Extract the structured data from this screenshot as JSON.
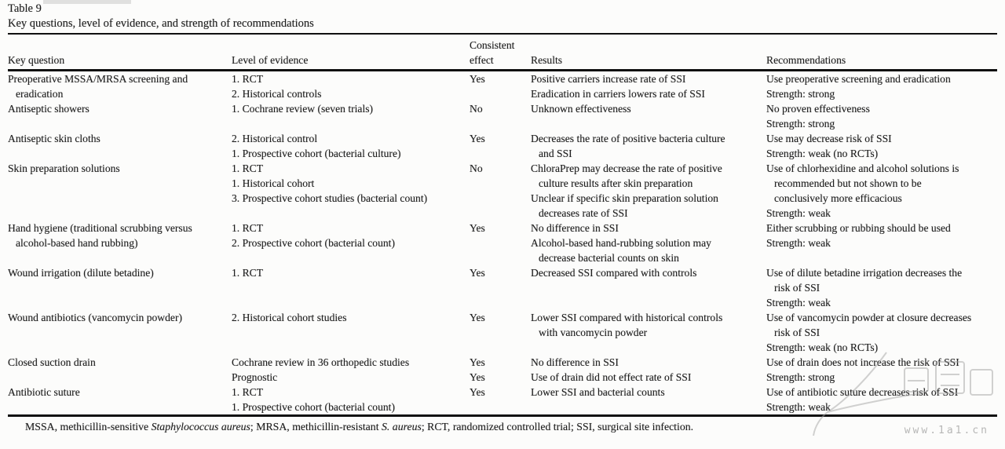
{
  "title": {
    "number": "Table 9",
    "caption": "Key questions, level of evidence, and strength of recommendations"
  },
  "table": {
    "headers": {
      "question": "Key question",
      "evidence": "Level of evidence",
      "effect_line1": "Consistent",
      "effect_line2": "effect",
      "results": "Results",
      "recommendations": "Recommendations"
    },
    "rows": [
      {
        "question": [
          {
            "t": "Preoperative MSSA/MRSA screening and"
          },
          {
            "t": "eradication",
            "i": 1
          }
        ],
        "evidence": [
          {
            "t": "1. RCT"
          },
          {
            "t": "2. Historical controls"
          }
        ],
        "effect": [
          {
            "t": "Yes"
          }
        ],
        "results": [
          {
            "t": "Positive carriers increase rate of SSI"
          },
          {
            "t": "Eradication in carriers lowers rate of SSI"
          }
        ],
        "recommendations": [
          {
            "t": "Use preoperative screening and eradication"
          },
          {
            "t": "Strength: strong"
          }
        ]
      },
      {
        "question": [
          {
            "t": "Antiseptic showers"
          }
        ],
        "evidence": [
          {
            "t": "1. Cochrane review (seven trials)"
          }
        ],
        "effect": [
          {
            "t": "No"
          }
        ],
        "results": [
          {
            "t": "Unknown effectiveness"
          }
        ],
        "recommendations": [
          {
            "t": "No proven effectiveness"
          },
          {
            "t": "Strength: strong"
          }
        ]
      },
      {
        "question": [
          {
            "t": "Antiseptic skin cloths"
          }
        ],
        "evidence": [
          {
            "t": "2. Historical control"
          },
          {
            "t": "1. Prospective cohort (bacterial culture)"
          }
        ],
        "effect": [
          {
            "t": "Yes"
          }
        ],
        "results": [
          {
            "t": "Decreases the rate of positive bacteria culture"
          },
          {
            "t": "and SSI",
            "i": 1
          }
        ],
        "recommendations": [
          {
            "t": "Use may decrease risk of SSI"
          },
          {
            "t": "Strength: weak (no RCTs)"
          }
        ]
      },
      {
        "question": [
          {
            "t": "Skin preparation solutions"
          }
        ],
        "evidence": [
          {
            "t": "1. RCT"
          },
          {
            "t": "1. Historical cohort"
          },
          {
            "t": "3. Prospective cohort studies (bacterial count)"
          }
        ],
        "effect": [
          {
            "t": "No"
          }
        ],
        "results": [
          {
            "t": "ChloraPrep may decrease the rate of positive"
          },
          {
            "t": "culture results after skin preparation",
            "i": 1
          },
          {
            "t": "Unclear if specific skin preparation solution"
          },
          {
            "t": "decreases rate of SSI",
            "i": 1
          }
        ],
        "recommendations": [
          {
            "t": "Use of chlorhexidine and alcohol solutions is"
          },
          {
            "t": "recommended but not shown to be",
            "i": 1
          },
          {
            "t": "conclusively more efficacious",
            "i": 1
          },
          {
            "t": "Strength: weak"
          }
        ]
      },
      {
        "question": [
          {
            "t": "Hand hygiene (traditional scrubbing versus"
          },
          {
            "t": "alcohol-based hand rubbing)",
            "i": 1
          }
        ],
        "evidence": [
          {
            "t": "1. RCT"
          },
          {
            "t": "2. Prospective cohort (bacterial count)"
          }
        ],
        "effect": [
          {
            "t": "Yes"
          }
        ],
        "results": [
          {
            "t": "No difference in SSI"
          },
          {
            "t": "Alcohol-based hand-rubbing solution may"
          },
          {
            "t": "decrease bacterial counts on skin",
            "i": 1
          }
        ],
        "recommendations": [
          {
            "t": "Either scrubbing or rubbing should be used"
          },
          {
            "t": "Strength: weak"
          }
        ]
      },
      {
        "question": [
          {
            "t": "Wound irrigation (dilute betadine)"
          }
        ],
        "evidence": [
          {
            "t": "1. RCT"
          }
        ],
        "effect": [
          {
            "t": "Yes"
          }
        ],
        "results": [
          {
            "t": "Decreased SSI compared with controls"
          }
        ],
        "recommendations": [
          {
            "t": "Use of dilute betadine irrigation decreases the"
          },
          {
            "t": "risk of SSI",
            "i": 1
          },
          {
            "t": "Strength: weak"
          }
        ]
      },
      {
        "question": [
          {
            "t": "Wound antibiotics (vancomycin powder)"
          }
        ],
        "evidence": [
          {
            "t": "2. Historical cohort studies"
          }
        ],
        "effect": [
          {
            "t": "Yes"
          }
        ],
        "results": [
          {
            "t": "Lower SSI compared with historical controls"
          },
          {
            "t": "with vancomycin powder",
            "i": 1
          }
        ],
        "recommendations": [
          {
            "t": "Use of vancomycin powder at closure decreases"
          },
          {
            "t": "risk of SSI",
            "i": 1
          },
          {
            "t": "Strength: weak (no RCTs)"
          }
        ]
      },
      {
        "question": [
          {
            "t": "Closed suction drain"
          }
        ],
        "evidence": [
          {
            "t": "Cochrane review in 36 orthopedic studies"
          },
          {
            "t": "Prognostic"
          }
        ],
        "effect": [
          {
            "t": "Yes"
          },
          {
            "t": "Yes"
          }
        ],
        "results": [
          {
            "t": "No difference in SSI"
          },
          {
            "t": "Use of drain did not effect rate of SSI"
          }
        ],
        "recommendations": [
          {
            "t": "Use of drain does not increase the risk of SSI"
          },
          {
            "t": "Strength: strong"
          }
        ]
      },
      {
        "question": [
          {
            "t": "Antibiotic suture"
          }
        ],
        "evidence": [
          {
            "t": "1. RCT"
          },
          {
            "t": "1. Prospective cohort (bacterial count)"
          }
        ],
        "effect": [
          {
            "t": "Yes"
          }
        ],
        "results": [
          {
            "t": "Lower SSI and bacterial counts"
          }
        ],
        "recommendations": [
          {
            "t": "Use of antibiotic suture decreases risk of SSI"
          },
          {
            "t": "Strength: weak"
          }
        ]
      }
    ]
  },
  "footnote": {
    "segments": [
      {
        "text": "MSSA, methicillin-sensitive "
      },
      {
        "text": "Staphylococcus aureus",
        "italic": true
      },
      {
        "text": "; MRSA, methicillin-resistant "
      },
      {
        "text": "S. aureus",
        "italic": true
      },
      {
        "text": "; RCT, randomized controlled trial; SSI, surgical site infection."
      }
    ]
  },
  "watermark": {
    "url": "www.1a1.cn"
  },
  "colors": {
    "text": "#1f1f1f",
    "rule": "#101010",
    "watermark": "#ababab"
  }
}
